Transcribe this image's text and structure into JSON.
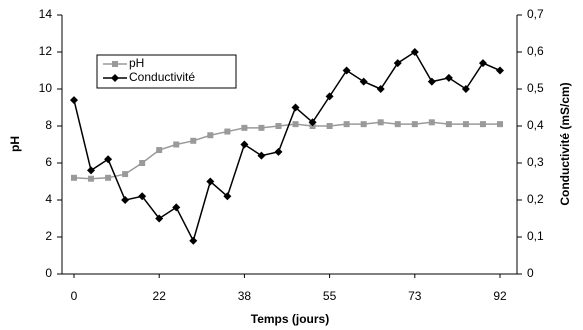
{
  "chart_data": {
    "type": "line",
    "x_label": "Temps (jours)",
    "y_label": "pH",
    "y2_label": "Conductivité (mS/cm)",
    "categories": [
      "0",
      null,
      null,
      null,
      null,
      "22",
      null,
      null,
      null,
      null,
      "38",
      null,
      null,
      null,
      null,
      "55",
      null,
      null,
      null,
      null,
      "73",
      null,
      null,
      null,
      null,
      "92"
    ],
    "series": [
      {
        "name": "pH",
        "color": "#9a9a9a",
        "marker": "square",
        "values": [
          5.2,
          5.15,
          5.2,
          5.4,
          6.0,
          6.7,
          7.0,
          7.2,
          7.5,
          7.7,
          7.9,
          7.9,
          8.0,
          8.1,
          8.0,
          8.0,
          8.1,
          8.1,
          8.2,
          8.1,
          8.1,
          8.2,
          8.1,
          8.1,
          8.1,
          8.1
        ]
      },
      {
        "name": "Conductivité",
        "color": "#000000",
        "marker": "diamond",
        "axis": "y2",
        "values": [
          0.47,
          0.28,
          0.31,
          0.2,
          0.21,
          0.15,
          0.18,
          0.09,
          0.25,
          0.21,
          0.35,
          0.32,
          0.33,
          0.45,
          0.41,
          0.48,
          0.55,
          0.52,
          0.5,
          0.57,
          0.6,
          0.52,
          0.53,
          0.5,
          0.57,
          0.55
        ]
      }
    ],
    "ylim": [
      0,
      14
    ],
    "yticks": [
      0,
      2,
      4,
      6,
      8,
      10,
      12,
      14
    ],
    "y2lim": [
      0,
      0.7
    ],
    "y2ticks": [
      0,
      {
        "value": 0.1,
        "label": "0,1"
      },
      {
        "value": 0.2,
        "label": "0,2"
      },
      {
        "value": 0.3,
        "label": "0,3"
      },
      {
        "value": 0.4,
        "label": "0,4"
      },
      {
        "value": 0.5,
        "label": "0,5"
      },
      {
        "value": 0.6,
        "label": "0,6"
      },
      {
        "value": 0.7,
        "label": "0,7"
      }
    ],
    "legend": "upper left",
    "grid": false
  }
}
